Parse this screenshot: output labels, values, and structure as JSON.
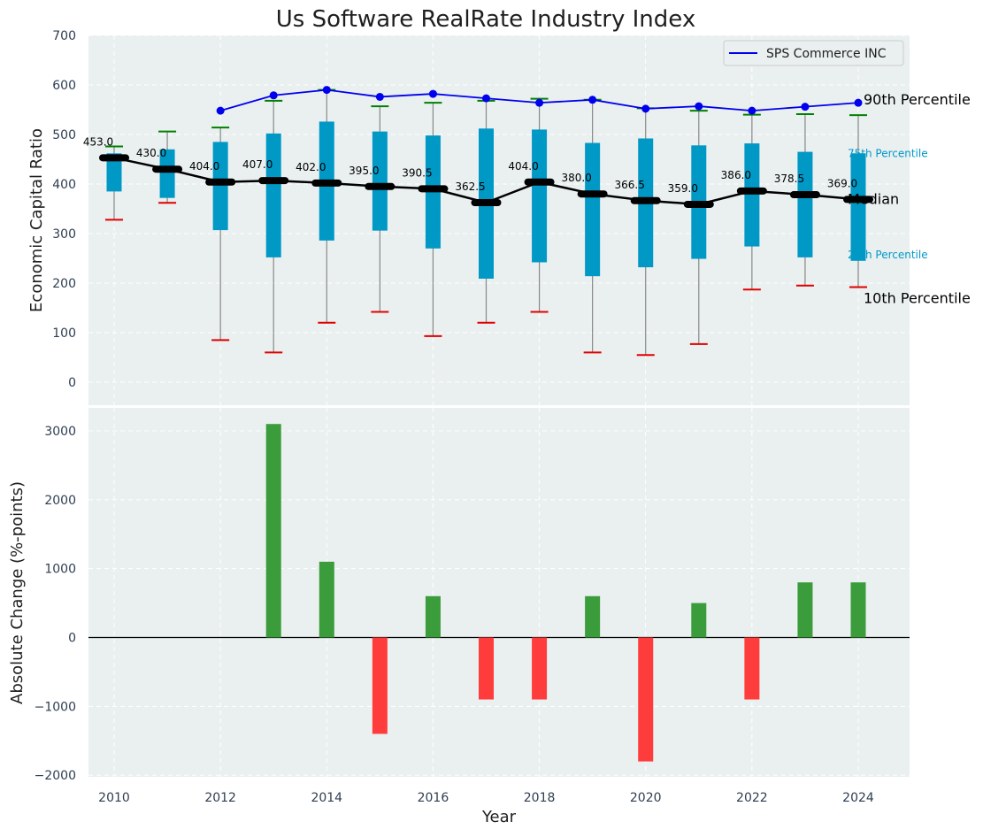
{
  "chart_data": [
    {
      "type": "box",
      "title": "Us Software RealRate Industry Index",
      "ylabel": "Economic Capital Ratio",
      "ylim": [
        -50,
        700
      ],
      "yticks": [
        0,
        100,
        200,
        300,
        400,
        500,
        600,
        700
      ],
      "grid": true,
      "years": [
        2010,
        2011,
        2012,
        2013,
        2014,
        2015,
        2016,
        2017,
        2018,
        2019,
        2020,
        2021,
        2022,
        2023,
        2024
      ],
      "p10": [
        328,
        362,
        85,
        60,
        120,
        142,
        93,
        120,
        142,
        60,
        55,
        77,
        187,
        195,
        192
      ],
      "p25": [
        385,
        372,
        307,
        252,
        286,
        306,
        270,
        209,
        242,
        214,
        232,
        249,
        274,
        252,
        245
      ],
      "median": [
        453.0,
        430.0,
        404.0,
        407.0,
        402.0,
        395.0,
        390.5,
        362.5,
        404.0,
        380.0,
        366.5,
        359.0,
        386.0,
        378.5,
        369.0
      ],
      "median_labels": [
        "453.0",
        "430.0",
        "404.0",
        "407.0",
        "402.0",
        "395.0",
        "390.5",
        "362.5",
        "404.0",
        "380.0",
        "366.5",
        "359.0",
        "386.0",
        "378.5",
        "369.0"
      ],
      "p75": [
        462,
        470,
        485,
        502,
        526,
        506,
        498,
        512,
        510,
        483,
        492,
        478,
        482,
        465,
        462
      ],
      "p90": [
        476,
        506,
        514,
        568,
        590,
        557,
        564,
        568,
        572,
        570,
        553,
        548,
        540,
        541,
        539
      ],
      "company_series": {
        "name": "SPS Commerce INC",
        "years": [
          2012,
          2013,
          2014,
          2015,
          2016,
          2017,
          2018,
          2019,
          2020,
          2021,
          2022,
          2023,
          2024
        ],
        "values": [
          548,
          579,
          590,
          576,
          582,
          573,
          564,
          570,
          552,
          557,
          548,
          556,
          564
        ]
      },
      "legend": {
        "position": "top-right",
        "entries": [
          "SPS Commerce INC"
        ]
      },
      "annotations": {
        "p90": "90th Percentile",
        "p75": "75th Percentile",
        "median": "Median",
        "p25": "25th Percentile",
        "p10": "10th Percentile"
      }
    },
    {
      "type": "bar",
      "xlabel": "Year",
      "ylabel": "Absolute Change (%-points)",
      "ylim": [
        -2000,
        3300
      ],
      "yticks": [
        -2000,
        -1000,
        0,
        1000,
        2000,
        3000
      ],
      "xticks": [
        2010,
        2012,
        2014,
        2016,
        2018,
        2020,
        2022,
        2024
      ],
      "grid": true,
      "years": [
        2013,
        2014,
        2015,
        2016,
        2017,
        2018,
        2019,
        2020,
        2021,
        2022,
        2023,
        2024
      ],
      "values": [
        3100,
        1100,
        -1400,
        600,
        -900,
        -900,
        600,
        -1800,
        500,
        -900,
        800,
        800
      ],
      "colors": {
        "positive": "#3a9c3a",
        "negative": "#ff3c3c"
      }
    }
  ],
  "colors": {
    "box": "#0099c6",
    "median_line": "#000000",
    "company_line": "#0000ee",
    "p90_cap": "#008000",
    "p10_cap": "#e00000",
    "whisker": "#888888",
    "panel_bg": "#eaeff0"
  }
}
